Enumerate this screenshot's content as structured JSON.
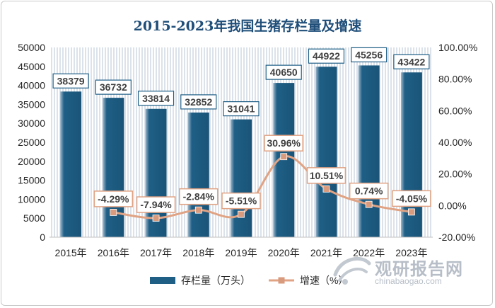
{
  "chart_data": {
    "type": "bar",
    "title": "2015-2023年我国生猪存栏量及增速",
    "categories": [
      "2015年",
      "2016年",
      "2017年",
      "2018年",
      "2019年",
      "2020年",
      "2021年",
      "2022年",
      "2023年"
    ],
    "series": [
      {
        "name": "存栏量（万头）",
        "type": "bar",
        "axis": "left",
        "values": [
          38379,
          36732,
          33814,
          32852,
          31041,
          40650,
          44922,
          45256,
          43422
        ],
        "labels": [
          "38379",
          "36732",
          "33814",
          "32852",
          "31041",
          "40650",
          "44922",
          "45256",
          "43422"
        ]
      },
      {
        "name": "增速（%）",
        "type": "line",
        "axis": "right",
        "x": [
          "2016年",
          "2017年",
          "2018年",
          "2019年",
          "2020年",
          "2021年",
          "2022年",
          "2023年"
        ],
        "values": [
          -4.29,
          -7.94,
          -2.84,
          -5.51,
          30.96,
          10.51,
          0.74,
          -4.05
        ],
        "labels": [
          "-4.29%",
          "-7.94%",
          "-2.84%",
          "-5.51%",
          "30.96%",
          "10.51%",
          "0.74%",
          "-4.05%"
        ]
      }
    ],
    "ylim": [
      0,
      50000
    ],
    "y_ticks": [
      "0",
      "5000",
      "10000",
      "15000",
      "20000",
      "25000",
      "30000",
      "35000",
      "40000",
      "45000",
      "50000"
    ],
    "y2lim": [
      -20,
      100
    ],
    "y2_ticks": [
      "-20.00%",
      "0.00%",
      "20.00%",
      "40.00%",
      "60.00%",
      "80.00%",
      "100.00%"
    ],
    "legend_position": "bottom",
    "grid": false,
    "colors": {
      "bar": "#1f5f86",
      "bar_highlight": "#9db6c9",
      "line": "#e0a384",
      "marker": "#d99b7e",
      "label_border": "#1f5f86",
      "line_label_border": "#e0a384",
      "plot_bg_stripe": "#d9e1ea"
    }
  },
  "watermark": {
    "brand": "观研报告网",
    "site": "chinabaogao.com"
  }
}
